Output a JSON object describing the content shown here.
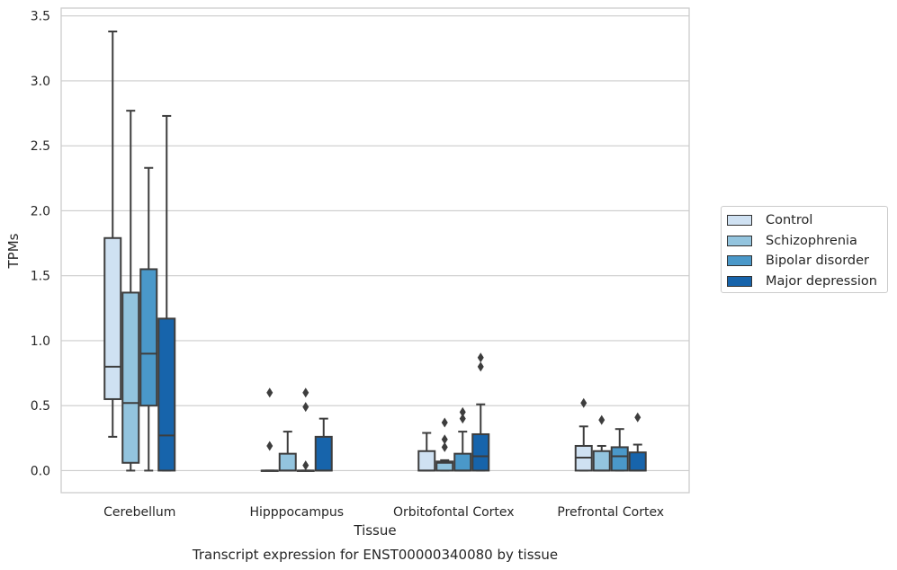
{
  "chart_data": {
    "type": "box",
    "title": "Transcript expression for ENST00000340080 by tissue",
    "xlabel": "Tissue",
    "ylabel": "TPMs",
    "ylim": [
      -0.17,
      3.56
    ],
    "yticks": [
      "0.0",
      "0.5",
      "1.0",
      "1.5",
      "2.0",
      "2.5",
      "3.0",
      "3.5"
    ],
    "ytick_values": [
      0,
      0.5,
      1.0,
      1.5,
      2.0,
      2.5,
      3.0,
      3.5
    ],
    "categories": [
      "Cerebellum",
      "Hipppocampus",
      "Orbitofontal Cortex",
      "Prefrontal Cortex"
    ],
    "grid": "horizontal",
    "legend_position": "right",
    "series": [
      {
        "name": "Control",
        "color": "#cfe1f2",
        "boxes": [
          {
            "whislo": 0.26,
            "q1": 0.55,
            "med": 0.8,
            "q3": 1.79,
            "whishi": 3.38,
            "fliers": []
          },
          {
            "whislo": 0.0,
            "q1": 0.0,
            "med": 0.0,
            "q3": 0.0,
            "whishi": 0.0,
            "fliers": [
              0.19,
              0.6
            ]
          },
          {
            "whislo": 0.0,
            "q1": 0.0,
            "med": 0.0,
            "q3": 0.15,
            "whishi": 0.29,
            "fliers": []
          },
          {
            "whislo": 0.0,
            "q1": 0.0,
            "med": 0.1,
            "q3": 0.19,
            "whishi": 0.34,
            "fliers": [
              0.52
            ]
          }
        ]
      },
      {
        "name": "Schizophrenia",
        "color": "#93c4de",
        "boxes": [
          {
            "whislo": 0.0,
            "q1": 0.06,
            "med": 0.52,
            "q3": 1.37,
            "whishi": 2.77,
            "fliers": []
          },
          {
            "whislo": 0.0,
            "q1": 0.0,
            "med": 0.0,
            "q3": 0.13,
            "whishi": 0.3,
            "fliers": []
          },
          {
            "whislo": 0.0,
            "q1": 0.0,
            "med": 0.06,
            "q3": 0.07,
            "whishi": 0.08,
            "fliers": [
              0.18,
              0.24,
              0.37
            ]
          },
          {
            "whislo": 0.0,
            "q1": 0.0,
            "med": 0.0,
            "q3": 0.15,
            "whishi": 0.19,
            "fliers": [
              0.39
            ]
          }
        ]
      },
      {
        "name": "Bipolar disorder",
        "color": "#4a98c9",
        "boxes": [
          {
            "whislo": 0.0,
            "q1": 0.5,
            "med": 0.9,
            "q3": 1.55,
            "whishi": 2.33,
            "fliers": []
          },
          {
            "whislo": 0.0,
            "q1": 0.0,
            "med": 0.0,
            "q3": 0.0,
            "whishi": 0.0,
            "fliers": [
              0.04,
              0.49,
              0.6
            ]
          },
          {
            "whislo": 0.0,
            "q1": 0.0,
            "med": 0.0,
            "q3": 0.13,
            "whishi": 0.3,
            "fliers": [
              0.4,
              0.45
            ]
          },
          {
            "whislo": 0.0,
            "q1": 0.0,
            "med": 0.11,
            "q3": 0.18,
            "whishi": 0.32,
            "fliers": []
          }
        ]
      },
      {
        "name": "Major depression",
        "color": "#1764ab",
        "boxes": [
          {
            "whislo": 0.0,
            "q1": 0.0,
            "med": 0.27,
            "q3": 1.17,
            "whishi": 2.73,
            "fliers": []
          },
          {
            "whislo": 0.0,
            "q1": 0.0,
            "med": 0.0,
            "q3": 0.26,
            "whishi": 0.4,
            "fliers": []
          },
          {
            "whislo": 0.0,
            "q1": 0.0,
            "med": 0.11,
            "q3": 0.28,
            "whishi": 0.51,
            "fliers": [
              0.8,
              0.87
            ]
          },
          {
            "whislo": 0.0,
            "q1": 0.0,
            "med": 0.0,
            "q3": 0.14,
            "whishi": 0.2,
            "fliers": [
              0.41
            ]
          }
        ]
      }
    ]
  }
}
